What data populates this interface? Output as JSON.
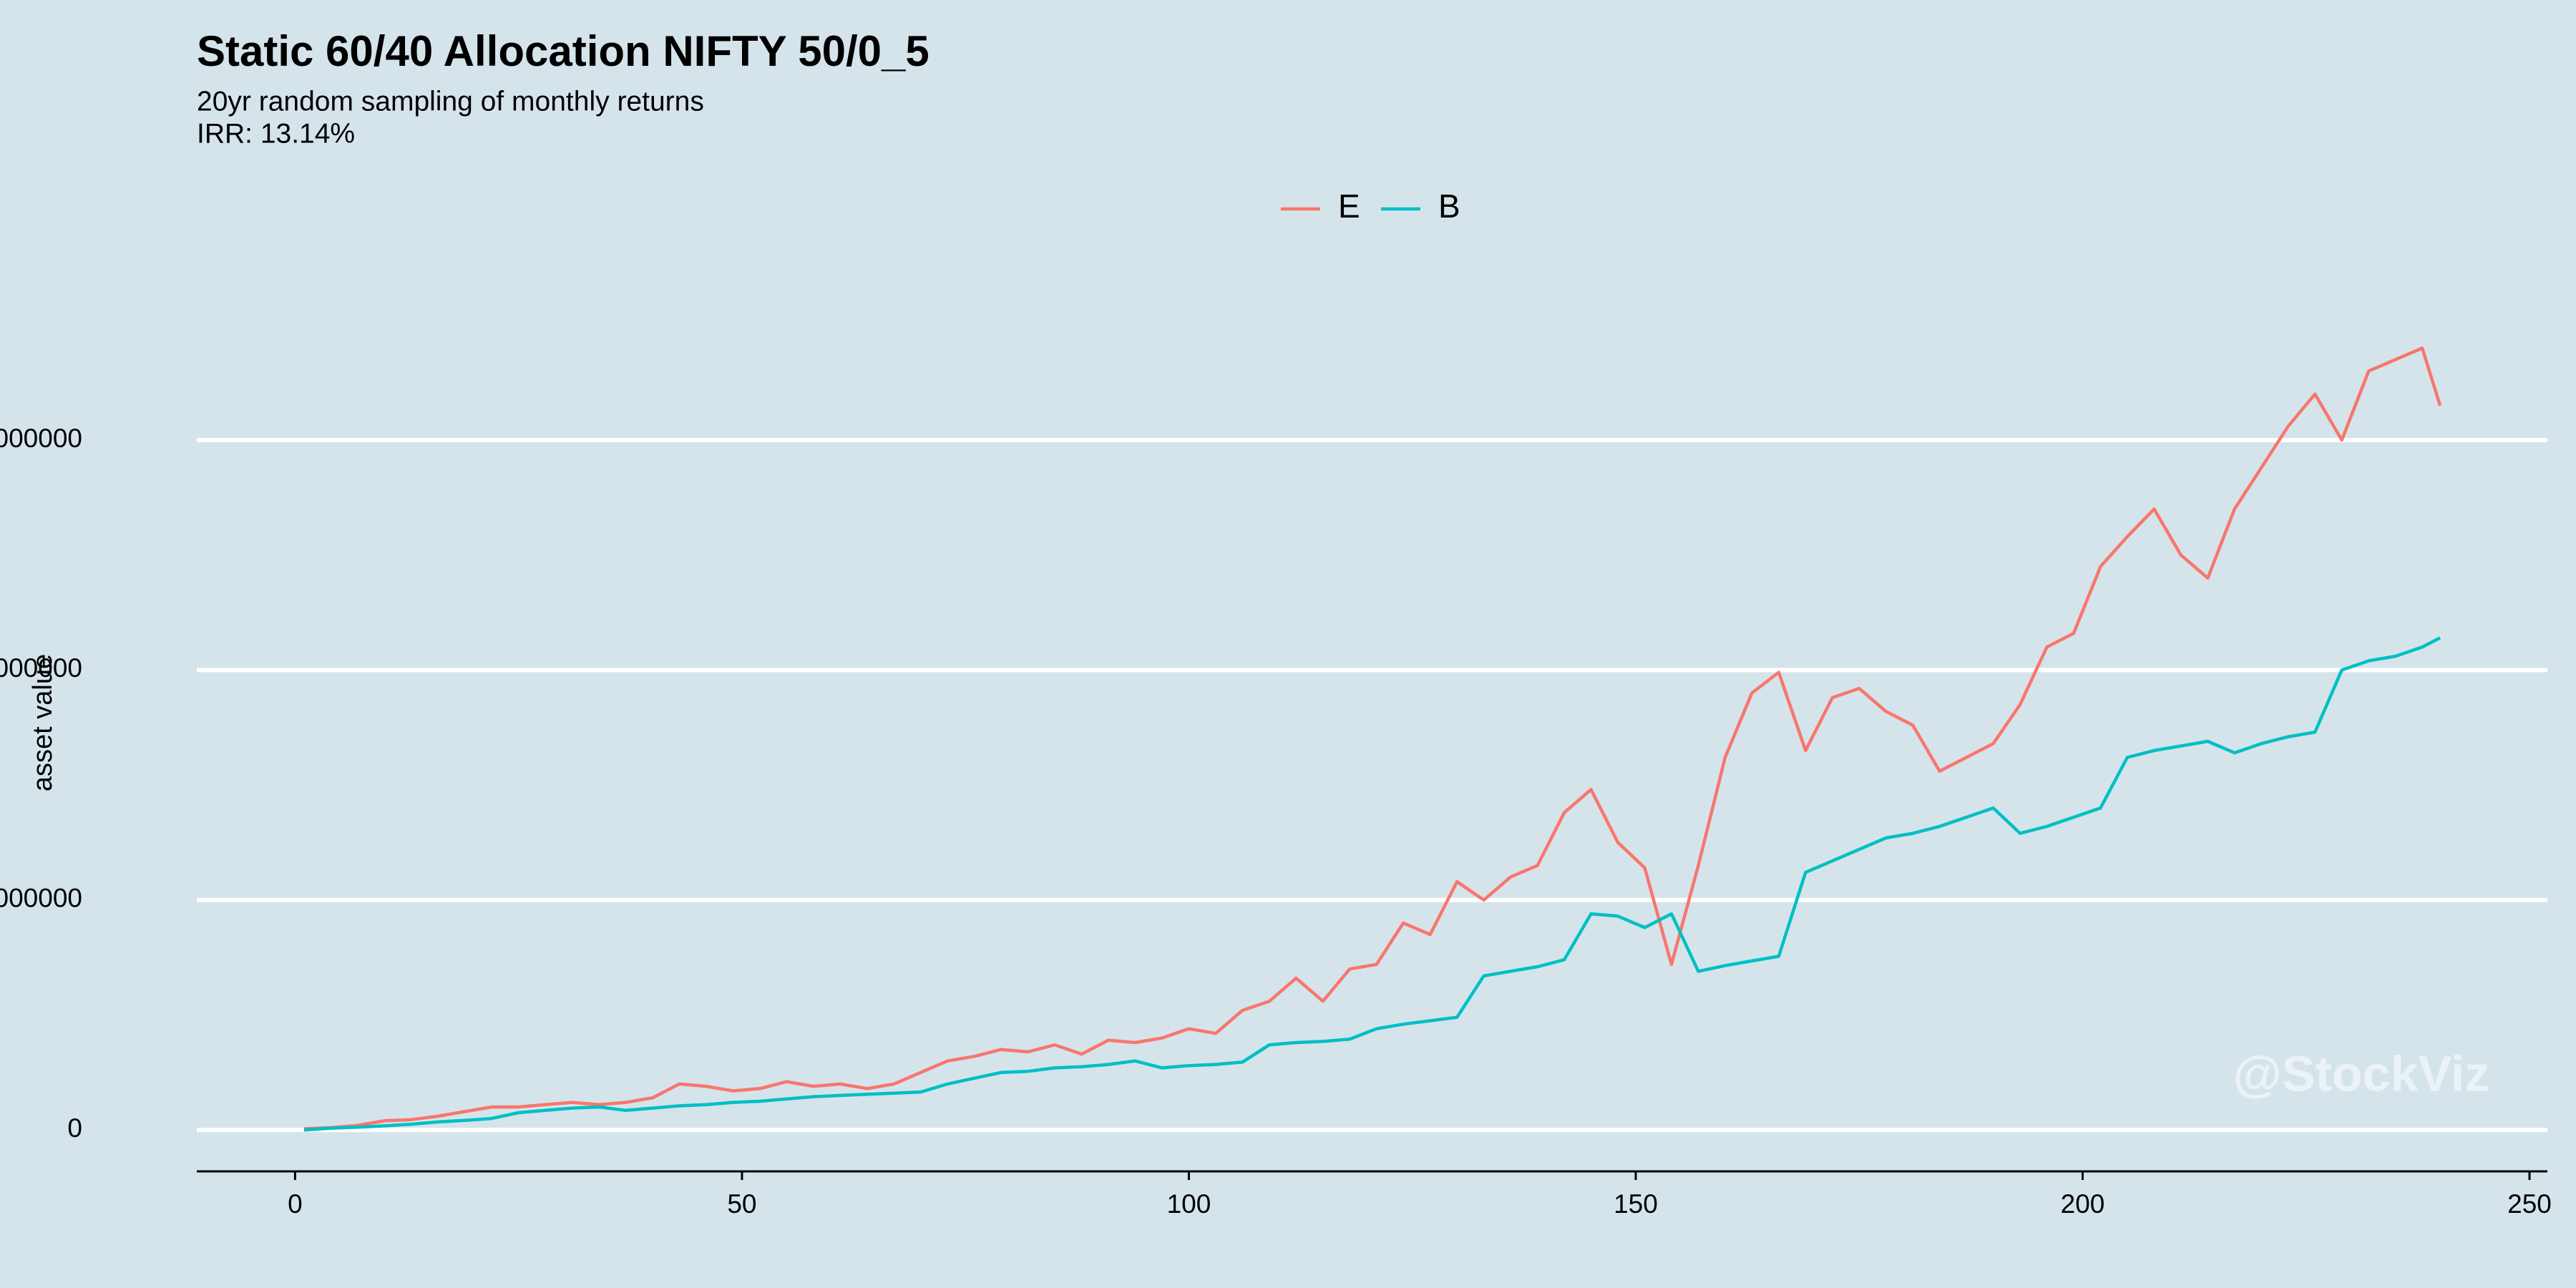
{
  "chart_data": {
    "type": "line",
    "title": "Static 60/40 Allocation NIFTY 50/0_5",
    "subtitle": [
      "20yr random sampling of monthly returns",
      "IRR: 13.14%"
    ],
    "y_label": "asset value",
    "watermark": "@StockViz",
    "legend": "top",
    "grid": true,
    "x": [
      1,
      4,
      7,
      10,
      13,
      16,
      19,
      22,
      25,
      28,
      31,
      34,
      37,
      40,
      43,
      46,
      49,
      52,
      55,
      58,
      61,
      64,
      67,
      70,
      73,
      76,
      79,
      82,
      85,
      88,
      91,
      94,
      97,
      100,
      103,
      106,
      109,
      112,
      115,
      118,
      121,
      124,
      127,
      130,
      133,
      136,
      139,
      142,
      145,
      148,
      151,
      154,
      157,
      160,
      163,
      166,
      169,
      172,
      175,
      178,
      181,
      184,
      187,
      190,
      193,
      196,
      199,
      202,
      205,
      208,
      211,
      214,
      217,
      220,
      223,
      226,
      229,
      232,
      235,
      238,
      240
    ],
    "series": [
      {
        "name": "E",
        "color": "#f8766d",
        "values": [
          5000,
          10000,
          20000,
          40000,
          45000,
          60000,
          80000,
          100000,
          100000,
          110000,
          120000,
          110000,
          120000,
          140000,
          200000,
          190000,
          170000,
          180000,
          210000,
          190000,
          200000,
          180000,
          200000,
          250000,
          300000,
          320000,
          350000,
          340000,
          370000,
          330000,
          390000,
          380000,
          400000,
          440000,
          420000,
          520000,
          560000,
          660000,
          560000,
          700000,
          720000,
          900000,
          850000,
          1080000,
          1000000,
          1100000,
          1150000,
          1380000,
          1480000,
          1250000,
          1140000,
          720000,
          1150000,
          1620000,
          1900000,
          1990000,
          1650000,
          1880000,
          1920000,
          1820000,
          1760000,
          1560000,
          1620000,
          1680000,
          1850000,
          2100000,
          2160000,
          2450000,
          2580000,
          2700000,
          2500000,
          2400000,
          2700000,
          2880000,
          3060000,
          3200000,
          3000000,
          3300000,
          3350000,
          3400000,
          3150000
        ]
      },
      {
        "name": "B",
        "color": "#00bfc4",
        "values": [
          0,
          8000,
          12000,
          18000,
          25000,
          35000,
          42000,
          50000,
          75000,
          85000,
          95000,
          100000,
          85000,
          95000,
          105000,
          110000,
          120000,
          125000,
          135000,
          145000,
          150000,
          155000,
          160000,
          165000,
          200000,
          225000,
          250000,
          255000,
          270000,
          275000,
          285000,
          300000,
          270000,
          280000,
          285000,
          295000,
          370000,
          380000,
          385000,
          395000,
          440000,
          460000,
          475000,
          490000,
          670000,
          690000,
          710000,
          740000,
          940000,
          930000,
          880000,
          940000,
          690000,
          715000,
          735000,
          755000,
          1120000,
          1170000,
          1220000,
          1270000,
          1290000,
          1320000,
          1360000,
          1400000,
          1290000,
          1320000,
          1360000,
          1400000,
          1620000,
          1650000,
          1670000,
          1690000,
          1640000,
          1680000,
          1710000,
          1730000,
          2000000,
          2040000,
          2060000,
          2100000,
          2140000
        ]
      }
    ],
    "xlim": [
      -11,
      252
    ],
    "xticks": [
      0,
      50,
      100,
      150,
      200,
      250
    ],
    "ylim": [
      -180000,
      3750000
    ],
    "yticks": [
      0,
      1000000,
      2000000,
      3000000
    ]
  }
}
